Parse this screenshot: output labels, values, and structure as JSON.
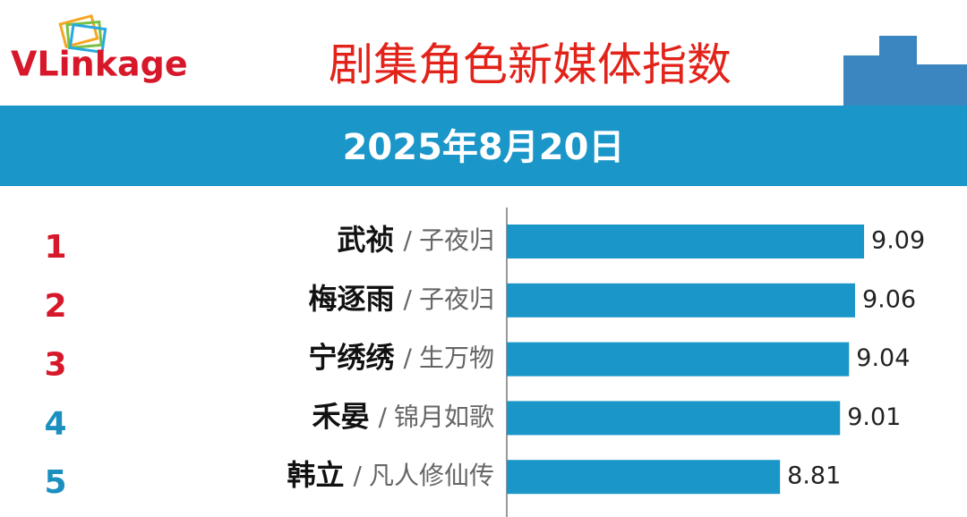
{
  "chart_data": {
    "type": "bar",
    "orientation": "horizontal",
    "logo": "VLinkage",
    "title": "剧集角色新媒体指数",
    "subtitle": "2025年8月20日",
    "ranks": [
      1,
      2,
      3,
      4,
      5
    ],
    "rank_colors": [
      "#d7182a",
      "#d7182a",
      "#d7182a",
      "#1b8fc0",
      "#1b8fc0"
    ],
    "categories": [
      "武祯",
      "梅逐雨",
      "宁绣绣",
      "禾晏",
      "韩立"
    ],
    "separator": "/",
    "shows": [
      "子夜归",
      "子夜归",
      "生万物",
      "锦月如歌",
      "凡人修仙传"
    ],
    "values": [
      9.09,
      9.06,
      9.04,
      9.01,
      8.81
    ],
    "color": "#1a96c8",
    "xlim": [
      7.9,
      9.4
    ]
  }
}
